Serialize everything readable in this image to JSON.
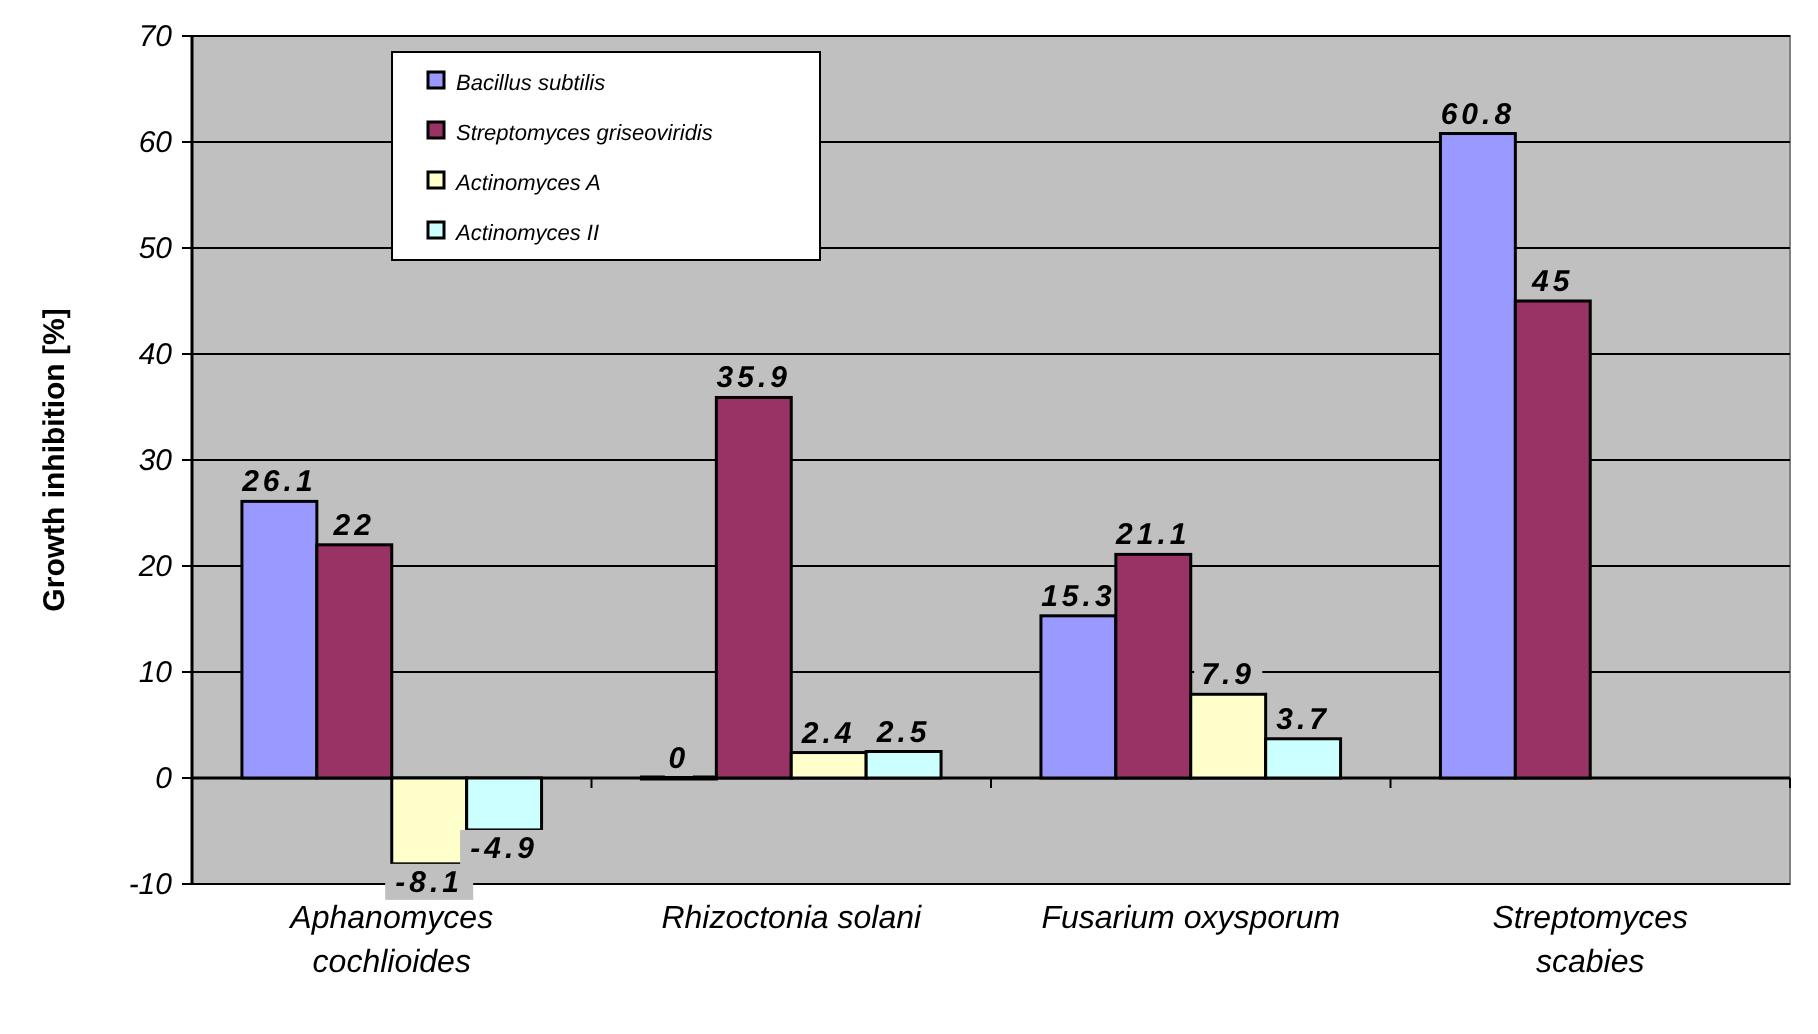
{
  "chart_data": {
    "type": "bar",
    "ylabel": "Growth inhibition [%]",
    "categories": [
      "Aphanomyces cochlioides",
      "Rhizoctonia solani",
      "Fusarium oxysporum",
      "Streptomyces scabies"
    ],
    "series": [
      {
        "name": "Bacillus subtilis",
        "color": "#9999ff",
        "values": [
          26.1,
          0,
          15.3,
          60.8
        ]
      },
      {
        "name": "Streptomyces griseoviridis",
        "color": "#993366",
        "values": [
          22,
          35.9,
          21.1,
          45
        ]
      },
      {
        "name": "Actinomyces A",
        "color": "#ffffcc",
        "values": [
          -8.1,
          2.4,
          7.9,
          null
        ]
      },
      {
        "name": "Actinomyces II",
        "color": "#ccffff",
        "values": [
          -4.9,
          2.5,
          3.7,
          null
        ]
      }
    ],
    "ylim": [
      -10,
      70
    ],
    "yticks": [
      -10,
      0,
      10,
      20,
      30,
      40,
      50,
      60,
      70
    ],
    "grid": "y",
    "legend": "top left",
    "data_labels": true
  }
}
